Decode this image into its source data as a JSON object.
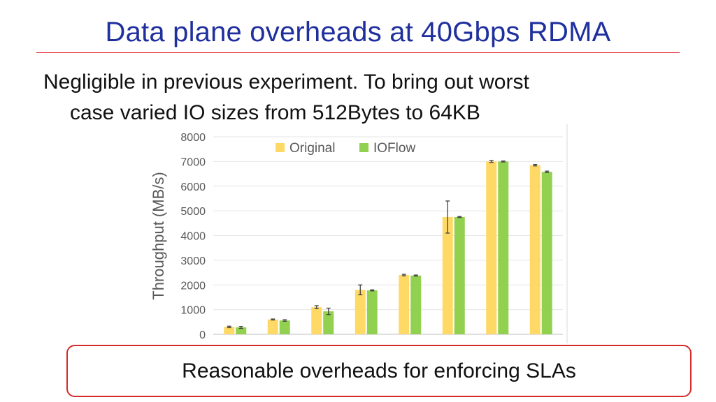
{
  "slide": {
    "title": "Data plane overheads at 40Gbps RDMA",
    "bullet_line1": "Negligible in previous experiment. To bring out worst",
    "bullet_line2": "case varied IO sizes from 512Bytes to 64KB",
    "callout": "Reasonable overheads for enforcing SLAs"
  },
  "colors": {
    "title": "#1f2f9e",
    "rule": "#e0202a",
    "original": "#ffd966",
    "ioflow": "#92d050",
    "callout_border": "#d62b2b"
  },
  "chart_data": {
    "type": "bar",
    "title": "",
    "xlabel": "",
    "ylabel": "Throughput (MB/s)",
    "ylim": [
      0,
      8000
    ],
    "yticks": [
      "0",
      "1000",
      "2000",
      "3000",
      "4000",
      "5000",
      "6000",
      "7000",
      "8000"
    ],
    "categories": [
      "",
      "",
      "",
      "",
      "",
      "",
      "",
      ""
    ],
    "legend_position": "top",
    "grid": true,
    "series": [
      {
        "name": "Original",
        "values": [
          300,
          600,
          1100,
          1800,
          2400,
          4750,
          7000,
          6850
        ],
        "errors": [
          30,
          20,
          60,
          200,
          30,
          650,
          40,
          30
        ]
      },
      {
        "name": "IOFlow",
        "values": [
          280,
          560,
          930,
          1780,
          2380,
          4750,
          7000,
          6580
        ],
        "errors": [
          40,
          30,
          130,
          20,
          20,
          20,
          20,
          30
        ]
      }
    ]
  }
}
